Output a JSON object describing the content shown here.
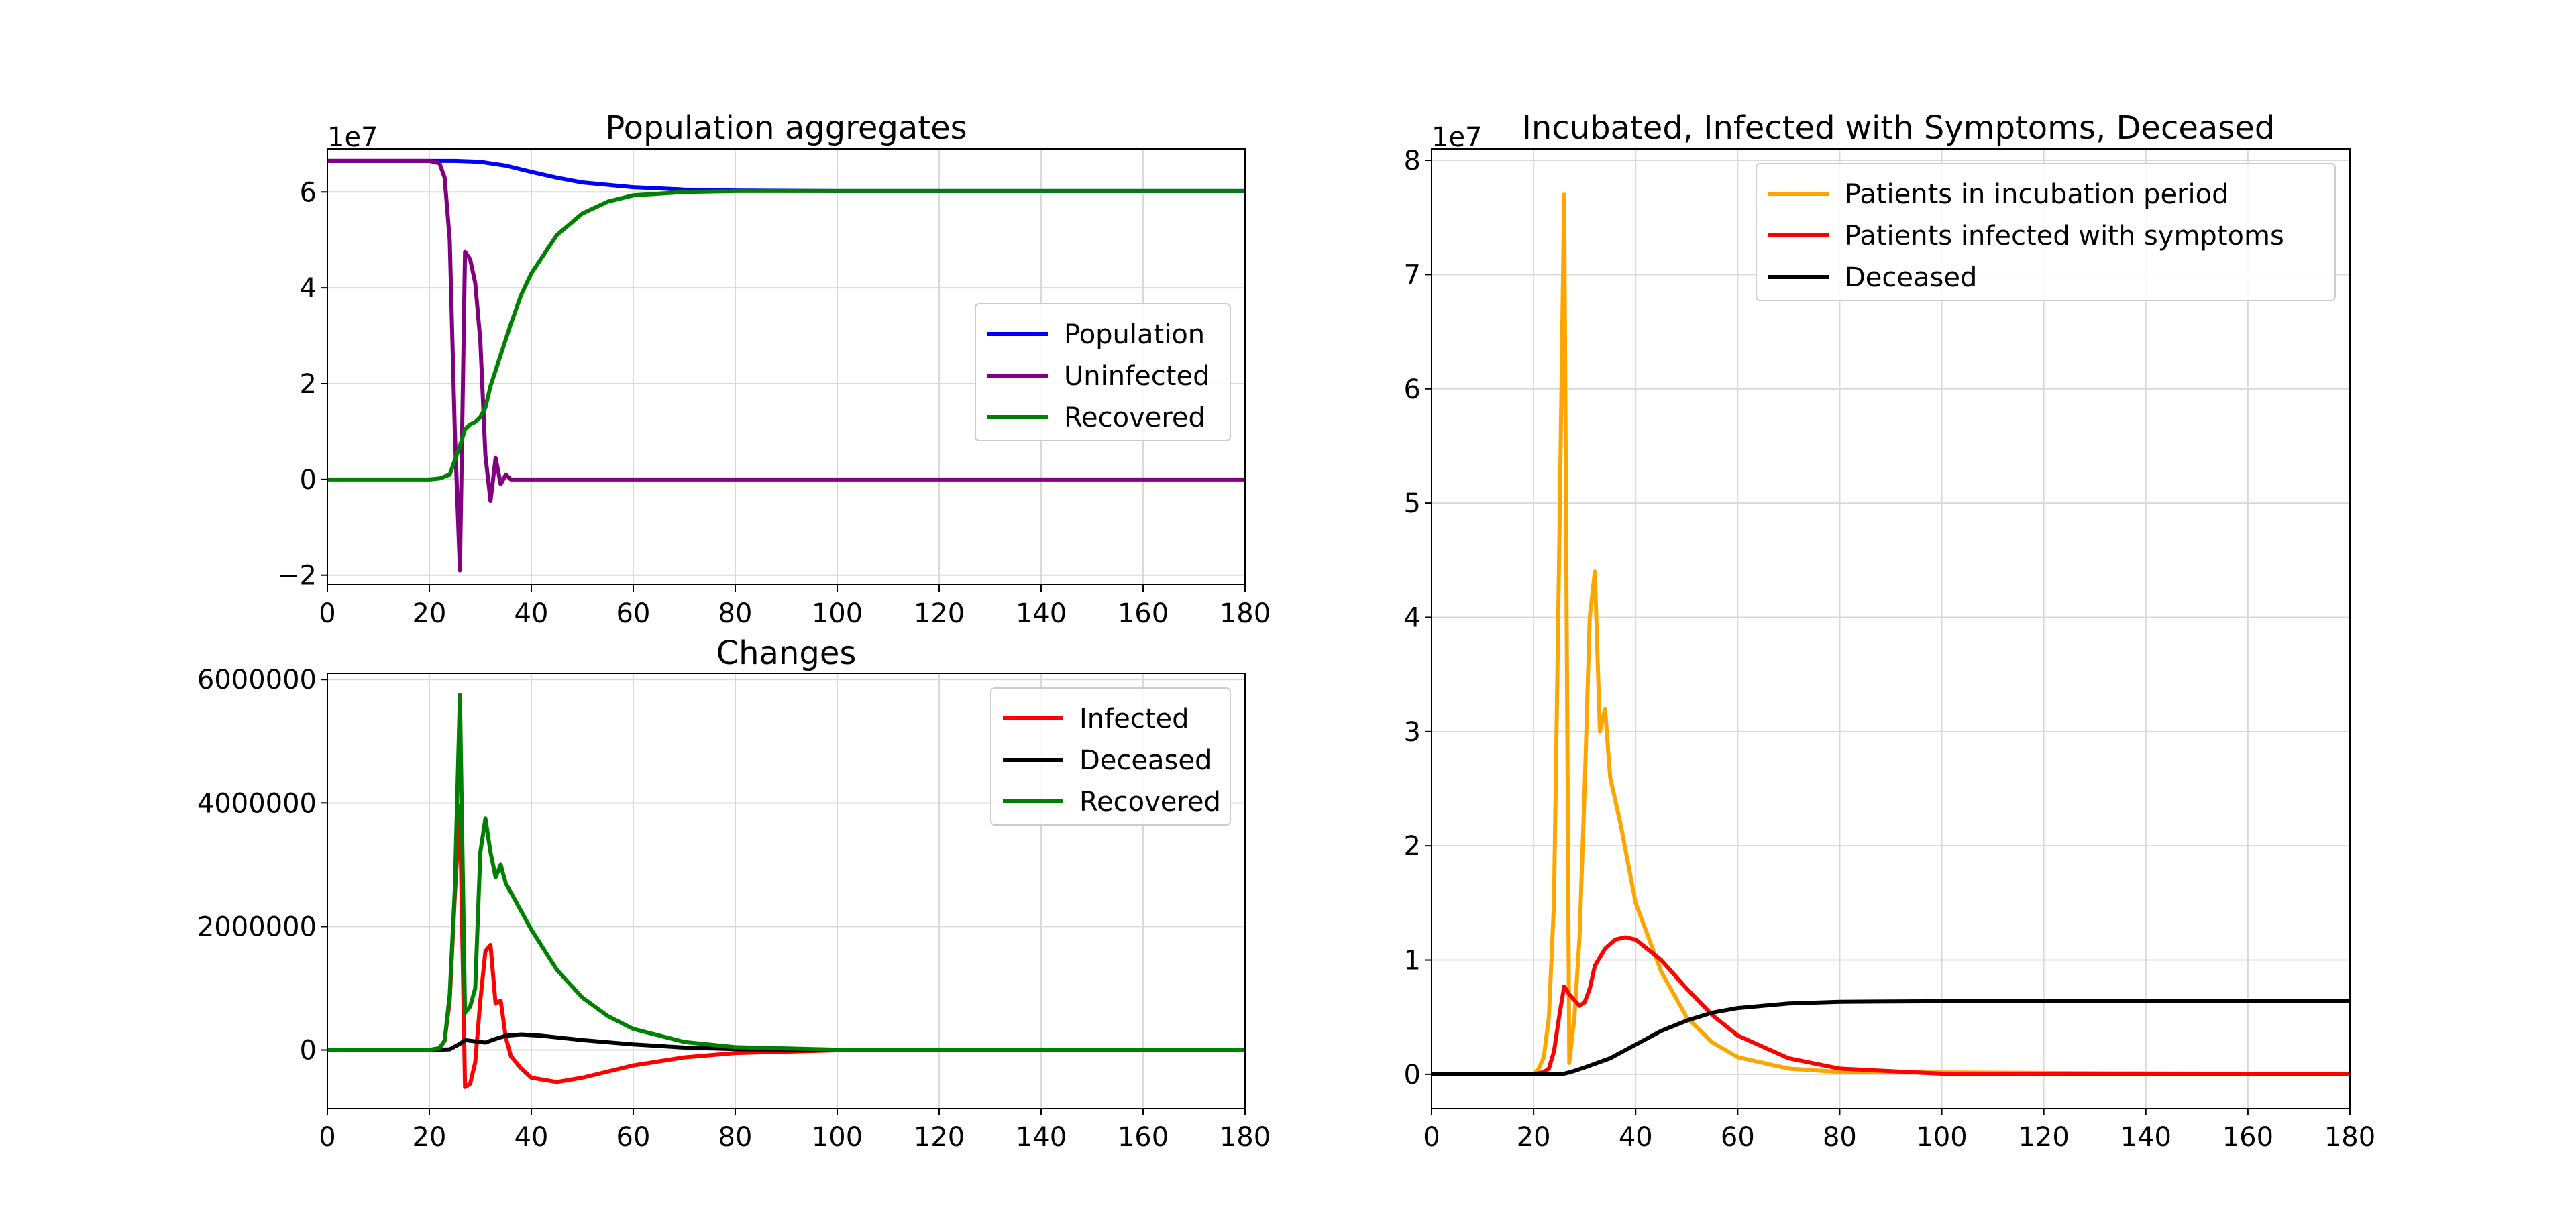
{
  "chart_data": [
    {
      "type": "line",
      "title": "Population aggregates",
      "xlabel": "",
      "ylabel": "",
      "y_multiplier_label": "1e7",
      "xlim": [
        0,
        180
      ],
      "ylim": [
        -2.2,
        6.9
      ],
      "xticks": [
        0,
        20,
        40,
        60,
        80,
        100,
        120,
        140,
        160,
        180
      ],
      "xtick_labels": [
        "0",
        "20",
        "40",
        "60",
        "80",
        "100",
        "120",
        "140",
        "160",
        "180"
      ],
      "yticks": [
        -2,
        0,
        2,
        4,
        6
      ],
      "ytick_labels": [
        "−2",
        "0",
        "2",
        "4",
        "6"
      ],
      "grid": true,
      "legend_position": "center-right",
      "series": [
        {
          "name": "Population",
          "color": "#0000ff",
          "points": [
            [
              0,
              6.65
            ],
            [
              20,
              6.65
            ],
            [
              25,
              6.65
            ],
            [
              30,
              6.63
            ],
            [
              35,
              6.55
            ],
            [
              40,
              6.42
            ],
            [
              45,
              6.3
            ],
            [
              50,
              6.2
            ],
            [
              60,
              6.1
            ],
            [
              70,
              6.05
            ],
            [
              80,
              6.03
            ],
            [
              100,
              6.02
            ],
            [
              180,
              6.02
            ]
          ]
        },
        {
          "name": "Uninfected",
          "color": "#800080",
          "points": [
            [
              0,
              6.65
            ],
            [
              20,
              6.65
            ],
            [
              22,
              6.6
            ],
            [
              23,
              6.3
            ],
            [
              24,
              5.0
            ],
            [
              25,
              1.0
            ],
            [
              26,
              -1.9
            ],
            [
              27,
              4.75
            ],
            [
              28,
              4.6
            ],
            [
              29,
              4.1
            ],
            [
              30,
              2.9
            ],
            [
              31,
              0.5
            ],
            [
              32,
              -0.45
            ],
            [
              33,
              0.45
            ],
            [
              34,
              -0.1
            ],
            [
              35,
              0.1
            ],
            [
              36,
              0.0
            ],
            [
              180,
              0.0
            ]
          ]
        },
        {
          "name": "Recovered",
          "color": "#008000",
          "points": [
            [
              0,
              0
            ],
            [
              20,
              0
            ],
            [
              22,
              0.02
            ],
            [
              24,
              0.1
            ],
            [
              25,
              0.4
            ],
            [
              26,
              0.7
            ],
            [
              27,
              1.05
            ],
            [
              28,
              1.15
            ],
            [
              29,
              1.2
            ],
            [
              30,
              1.3
            ],
            [
              31,
              1.5
            ],
            [
              32,
              1.95
            ],
            [
              34,
              2.6
            ],
            [
              36,
              3.25
            ],
            [
              38,
              3.85
            ],
            [
              40,
              4.3
            ],
            [
              45,
              5.1
            ],
            [
              50,
              5.55
            ],
            [
              55,
              5.8
            ],
            [
              60,
              5.93
            ],
            [
              70,
              6.0
            ],
            [
              80,
              6.02
            ],
            [
              100,
              6.02
            ],
            [
              180,
              6.02
            ]
          ]
        }
      ]
    },
    {
      "type": "line",
      "title": "Changes",
      "xlabel": "",
      "ylabel": "",
      "xlim": [
        0,
        180
      ],
      "ylim": [
        -950000,
        6100000
      ],
      "xticks": [
        0,
        20,
        40,
        60,
        80,
        100,
        120,
        140,
        160,
        180
      ],
      "xtick_labels": [
        "0",
        "20",
        "40",
        "60",
        "80",
        "100",
        "120",
        "140",
        "160",
        "180"
      ],
      "yticks": [
        0,
        2000000,
        4000000,
        6000000
      ],
      "ytick_labels": [
        "0",
        "2000000",
        "4000000",
        "6000000"
      ],
      "grid": true,
      "legend_position": "top-right",
      "series": [
        {
          "name": "Infected",
          "color": "#ff0000",
          "points": [
            [
              0,
              0
            ],
            [
              20,
              0
            ],
            [
              22,
              30000
            ],
            [
              23,
              150000
            ],
            [
              24,
              800000
            ],
            [
              25,
              2500000
            ],
            [
              26,
              3950000
            ],
            [
              27,
              -600000
            ],
            [
              28,
              -550000
            ],
            [
              29,
              -200000
            ],
            [
              30,
              800000
            ],
            [
              31,
              1600000
            ],
            [
              32,
              1700000
            ],
            [
              33,
              750000
            ],
            [
              34,
              800000
            ],
            [
              35,
              200000
            ],
            [
              36,
              -100000
            ],
            [
              38,
              -300000
            ],
            [
              40,
              -450000
            ],
            [
              45,
              -520000
            ],
            [
              50,
              -450000
            ],
            [
              60,
              -250000
            ],
            [
              70,
              -120000
            ],
            [
              80,
              -50000
            ],
            [
              100,
              -5000
            ],
            [
              180,
              0
            ]
          ]
        },
        {
          "name": "Deceased",
          "color": "#000000",
          "points": [
            [
              0,
              0
            ],
            [
              20,
              0
            ],
            [
              24,
              10000
            ],
            [
              26,
              100000
            ],
            [
              27,
              160000
            ],
            [
              29,
              140000
            ],
            [
              31,
              120000
            ],
            [
              33,
              180000
            ],
            [
              35,
              230000
            ],
            [
              38,
              250000
            ],
            [
              42,
              230000
            ],
            [
              50,
              160000
            ],
            [
              60,
              90000
            ],
            [
              70,
              40000
            ],
            [
              80,
              15000
            ],
            [
              100,
              1000
            ],
            [
              180,
              0
            ]
          ]
        },
        {
          "name": "Recovered",
          "color": "#008000",
          "points": [
            [
              0,
              0
            ],
            [
              20,
              0
            ],
            [
              22,
              30000
            ],
            [
              23,
              150000
            ],
            [
              24,
              900000
            ],
            [
              25,
              2600000
            ],
            [
              26,
              5750000
            ],
            [
              27,
              600000
            ],
            [
              28,
              700000
            ],
            [
              29,
              1000000
            ],
            [
              30,
              3200000
            ],
            [
              31,
              3750000
            ],
            [
              32,
              3200000
            ],
            [
              33,
              2800000
            ],
            [
              34,
              3000000
            ],
            [
              35,
              2700000
            ],
            [
              36,
              2550000
            ],
            [
              38,
              2250000
            ],
            [
              40,
              1950000
            ],
            [
              45,
              1300000
            ],
            [
              50,
              850000
            ],
            [
              55,
              550000
            ],
            [
              60,
              340000
            ],
            [
              70,
              130000
            ],
            [
              80,
              45000
            ],
            [
              100,
              5000
            ],
            [
              180,
              0
            ]
          ]
        }
      ]
    },
    {
      "type": "line",
      "title": "Incubated, Infected with Symptoms, Deceased",
      "xlabel": "",
      "ylabel": "",
      "y_multiplier_label": "1e7",
      "xlim": [
        0,
        180
      ],
      "ylim": [
        -0.3,
        8.1
      ],
      "xticks": [
        0,
        20,
        40,
        60,
        80,
        100,
        120,
        140,
        160,
        180
      ],
      "xtick_labels": [
        "0",
        "20",
        "40",
        "60",
        "80",
        "100",
        "120",
        "140",
        "160",
        "180"
      ],
      "yticks": [
        0,
        1,
        2,
        3,
        4,
        5,
        6,
        7,
        8
      ],
      "ytick_labels": [
        "0",
        "1",
        "2",
        "3",
        "4",
        "5",
        "6",
        "7",
        "8"
      ],
      "grid": true,
      "legend_position": "top-right",
      "series": [
        {
          "name": "Patients in incubation period",
          "color": "#ffa500",
          "points": [
            [
              0,
              0
            ],
            [
              20,
              0
            ],
            [
              21,
              0.05
            ],
            [
              22,
              0.15
            ],
            [
              23,
              0.5
            ],
            [
              24,
              1.5
            ],
            [
              25,
              4.5
            ],
            [
              26,
              7.7
            ],
            [
              27,
              0.1
            ],
            [
              28,
              0.5
            ],
            [
              29,
              1.2
            ],
            [
              30,
              2.5
            ],
            [
              31,
              4.0
            ],
            [
              32,
              4.4
            ],
            [
              33,
              3.0
            ],
            [
              34,
              3.2
            ],
            [
              35,
              2.6
            ],
            [
              37,
              2.2
            ],
            [
              40,
              1.5
            ],
            [
              45,
              0.9
            ],
            [
              50,
              0.5
            ],
            [
              55,
              0.28
            ],
            [
              60,
              0.15
            ],
            [
              70,
              0.05
            ],
            [
              80,
              0.02
            ],
            [
              180,
              0
            ]
          ]
        },
        {
          "name": "Patients infected with symptoms",
          "color": "#ff0000",
          "points": [
            [
              0,
              0
            ],
            [
              20,
              0
            ],
            [
              22,
              0.02
            ],
            [
              23,
              0.05
            ],
            [
              24,
              0.2
            ],
            [
              25,
              0.5
            ],
            [
              26,
              0.77
            ],
            [
              27,
              0.7
            ],
            [
              28,
              0.65
            ],
            [
              29,
              0.6
            ],
            [
              30,
              0.63
            ],
            [
              31,
              0.75
            ],
            [
              32,
              0.95
            ],
            [
              34,
              1.1
            ],
            [
              36,
              1.18
            ],
            [
              38,
              1.2
            ],
            [
              40,
              1.18
            ],
            [
              45,
              1.0
            ],
            [
              50,
              0.75
            ],
            [
              55,
              0.52
            ],
            [
              60,
              0.34
            ],
            [
              70,
              0.14
            ],
            [
              80,
              0.05
            ],
            [
              100,
              0.005
            ],
            [
              180,
              0
            ]
          ]
        },
        {
          "name": "Deceased",
          "color": "#000000",
          "points": [
            [
              0,
              0
            ],
            [
              20,
              0
            ],
            [
              26,
              0.005
            ],
            [
              28,
              0.03
            ],
            [
              30,
              0.06
            ],
            [
              35,
              0.14
            ],
            [
              40,
              0.26
            ],
            [
              45,
              0.38
            ],
            [
              50,
              0.47
            ],
            [
              55,
              0.54
            ],
            [
              60,
              0.58
            ],
            [
              70,
              0.62
            ],
            [
              80,
              0.635
            ],
            [
              100,
              0.64
            ],
            [
              180,
              0.64
            ]
          ]
        }
      ]
    }
  ]
}
